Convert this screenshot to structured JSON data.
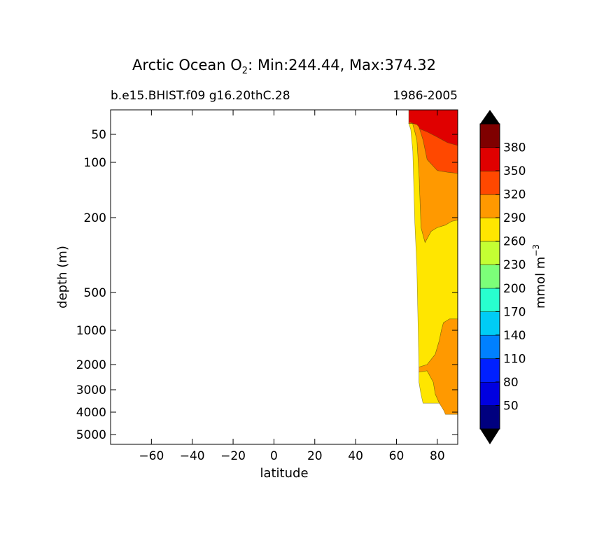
{
  "chart_data": {
    "type": "contour",
    "title_prefix": "Arctic Ocean O",
    "title_subscript": "2",
    "title_suffix": ": Min:244.44, Max:374.32",
    "subtitle_left": "b.e15.BHIST.f09 g16.20thC.28",
    "subtitle_right": "1986-2005",
    "xlabel": "latitude",
    "ylabel": "depth (m)",
    "xlim": [
      -80,
      90
    ],
    "ylim_depth": [
      0,
      5500
    ],
    "y_scale": "stretched (approx. log)",
    "xticks": [
      -60,
      -40,
      -20,
      0,
      20,
      40,
      60,
      80
    ],
    "xtick_labels": [
      "−60",
      "−40",
      "−20",
      "0",
      "20",
      "40",
      "60",
      "80"
    ],
    "yticks": [
      50,
      100,
      200,
      500,
      1000,
      2000,
      3000,
      4000,
      5000
    ],
    "ytick_labels": [
      "50",
      "100",
      "200",
      "500",
      "1000",
      "2000",
      "3000",
      "4000",
      "5000"
    ],
    "colorbar": {
      "label_main": "mmol m",
      "label_sup": "−3",
      "levels": [
        20,
        50,
        80,
        110,
        140,
        170,
        200,
        230,
        260,
        290,
        320,
        350,
        380,
        410
      ],
      "tick_labels": [
        "50",
        "80",
        "110",
        "140",
        "170",
        "200",
        "230",
        "260",
        "290",
        "320",
        "350",
        "380"
      ],
      "colors": [
        "#00007f",
        "#0000e0",
        "#0020ff",
        "#0080ff",
        "#00ccf5",
        "#28ffcf",
        "#7cff79",
        "#c4ff33",
        "#ffe600",
        "#ff9900",
        "#ff4800",
        "#e00000",
        "#7f0000"
      ],
      "extend": "both",
      "extend_low_color": "#000000",
      "extend_high_color": "#000000"
    },
    "regions": [
      {
        "name": "surface-layer",
        "value_range": [
          350,
          380
        ],
        "color": "#e00000",
        "polygon": [
          [
            66,
            0
          ],
          [
            90,
            0
          ],
          [
            90,
            70
          ],
          [
            85,
            65
          ],
          [
            80,
            55
          ],
          [
            75,
            45
          ],
          [
            72,
            40
          ],
          [
            70,
            35
          ],
          [
            67,
            25
          ],
          [
            66,
            25
          ]
        ]
      },
      {
        "name": "subsurface-layer",
        "value_range": [
          320,
          350
        ],
        "color": "#ff4800",
        "polygon": [
          [
            66,
            25
          ],
          [
            67,
            25
          ],
          [
            70,
            35
          ],
          [
            72,
            40
          ],
          [
            75,
            45
          ],
          [
            80,
            55
          ],
          [
            85,
            65
          ],
          [
            90,
            70
          ],
          [
            90,
            120
          ],
          [
            85,
            118
          ],
          [
            80,
            115
          ],
          [
            75,
            95
          ],
          [
            73,
            60
          ],
          [
            71,
            35
          ],
          [
            70,
            30
          ],
          [
            68,
            28
          ],
          [
            66,
            28
          ]
        ]
      },
      {
        "name": "mid-layer",
        "value_range": [
          290,
          320
        ],
        "color": "#ff9900",
        "polygon": [
          [
            68,
            28
          ],
          [
            70,
            30
          ],
          [
            71,
            35
          ],
          [
            73,
            60
          ],
          [
            75,
            95
          ],
          [
            80,
            115
          ],
          [
            85,
            118
          ],
          [
            90,
            120
          ],
          [
            90,
            210
          ],
          [
            87,
            215
          ],
          [
            84,
            230
          ],
          [
            80,
            240
          ],
          [
            77,
            255
          ],
          [
            74,
            300
          ],
          [
            72,
            240
          ],
          [
            71,
            120
          ],
          [
            70,
            60
          ],
          [
            69,
            45
          ],
          [
            68,
            30
          ]
        ]
      },
      {
        "name": "deep-layer",
        "value_range": [
          260,
          290
        ],
        "color": "#ffe600",
        "polygon": [
          [
            66,
            28
          ],
          [
            68,
            28
          ],
          [
            68,
            30
          ],
          [
            69,
            45
          ],
          [
            70,
            60
          ],
          [
            71,
            120
          ],
          [
            72,
            240
          ],
          [
            74,
            300
          ],
          [
            77,
            255
          ],
          [
            80,
            240
          ],
          [
            84,
            230
          ],
          [
            87,
            215
          ],
          [
            90,
            210
          ],
          [
            90,
            850
          ],
          [
            86,
            850
          ],
          [
            83,
            900
          ],
          [
            82,
            1000
          ],
          [
            81,
            1300
          ],
          [
            79,
            1700
          ],
          [
            75,
            2000
          ],
          [
            71,
            2100
          ],
          [
            70,
            400
          ],
          [
            69,
            220
          ],
          [
            68,
            80
          ],
          [
            67,
            40
          ]
        ]
      },
      {
        "name": "bottom-layer",
        "value_range": [
          290,
          320
        ],
        "color": "#ff9900",
        "polygon": [
          [
            71,
            2100
          ],
          [
            75,
            2000
          ],
          [
            79,
            1700
          ],
          [
            81,
            1300
          ],
          [
            82,
            1000
          ],
          [
            83,
            900
          ],
          [
            86,
            850
          ],
          [
            90,
            850
          ],
          [
            90,
            4100
          ],
          [
            84,
            4100
          ],
          [
            83,
            3900
          ],
          [
            81,
            3600
          ],
          [
            79,
            3200
          ],
          [
            78,
            2700
          ],
          [
            75,
            2250
          ],
          [
            71,
            2300
          ]
        ]
      },
      {
        "name": "bottom-edge-layer",
        "value_range": [
          260,
          290
        ],
        "color": "#ffe600",
        "polygon": [
          [
            71,
            2300
          ],
          [
            75,
            2250
          ],
          [
            78,
            2700
          ],
          [
            79,
            3200
          ],
          [
            81,
            3600
          ],
          [
            78,
            3600
          ],
          [
            73,
            3600
          ],
          [
            72,
            3200
          ],
          [
            71,
            2700
          ]
        ]
      }
    ]
  }
}
